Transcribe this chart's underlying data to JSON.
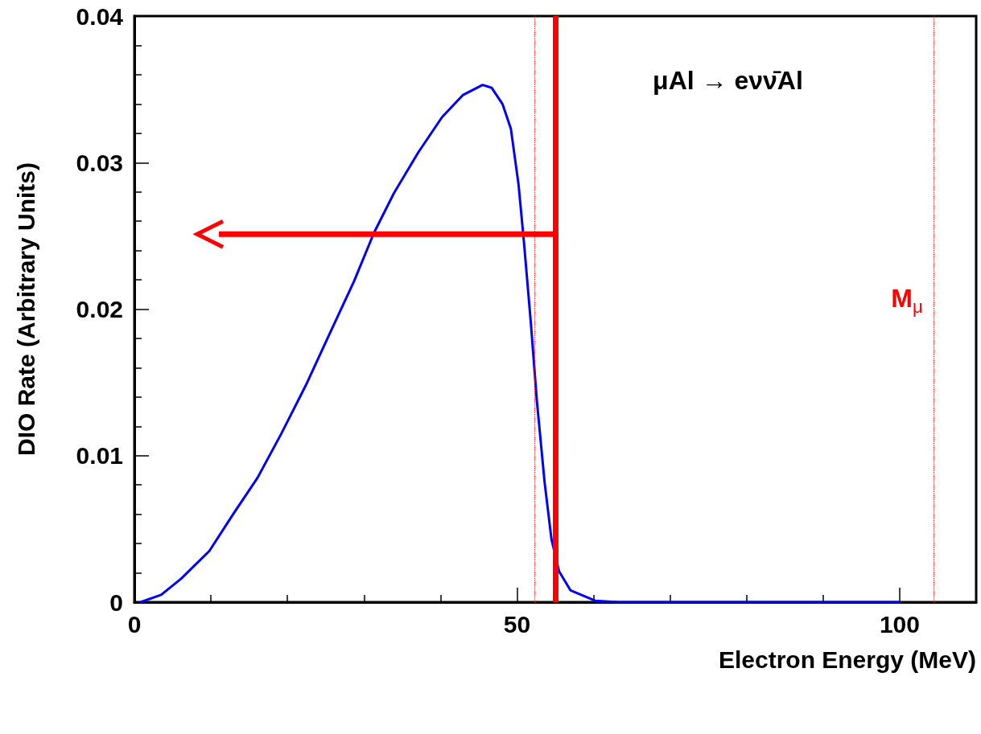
{
  "chart_data": {
    "type": "line",
    "xlabel": "Electron Energy (MeV)",
    "ylabel": "DIO Rate (Arbitrary Units)",
    "annotations": [
      "μAl → eνν̄Al"
    ],
    "series": [
      {
        "color": "#0000ff",
        "x": [
          0.8,
          3.5,
          6.1,
          9.8,
          12.9,
          16.1,
          19.2,
          22.4,
          25.5,
          28.7,
          31.3,
          33.9,
          37.1,
          40.2,
          42.9,
          45.5,
          46.7,
          48.1,
          49.2,
          50.2,
          50.9,
          51.8,
          52.6,
          53.6,
          54.5,
          55.5,
          57.0,
          60.2,
          63.3,
          70,
          80,
          90,
          100
        ],
        "values": [
          0,
          0.0005,
          0.0016,
          0.0035,
          0.006,
          0.0085,
          0.0115,
          0.0148,
          0.0183,
          0.0219,
          0.0252,
          0.0279,
          0.0307,
          0.0331,
          0.0346,
          0.0353,
          0.0351,
          0.034,
          0.0323,
          0.0285,
          0.0246,
          0.0191,
          0.0137,
          0.0082,
          0.0043,
          0.0021,
          0.0008,
          0.0001,
          0,
          0,
          0,
          0,
          0
        ]
      }
    ],
    "xlim": [
      0,
      110
    ],
    "xticks": [
      0,
      50,
      100
    ],
    "ylim": [
      0,
      0.04
    ],
    "yticks": [
      0,
      0.01,
      0.02,
      0.03,
      0.04
    ],
    "grid": false,
    "marker": "none",
    "line_style": "solid",
    "ref_lines": [
      {
        "axis": "x",
        "value": 52.3,
        "color": "#ff0000",
        "line_style": "dotted"
      },
      {
        "axis": "x",
        "value": 104.5,
        "label": "M$_{μ}$",
        "color": "#ff0000",
        "line_style": "dotted"
      },
      {
        "axis": "x",
        "value": 55,
        "color": "#ff0000",
        "line_style": "solid"
      }
    ]
  }
}
